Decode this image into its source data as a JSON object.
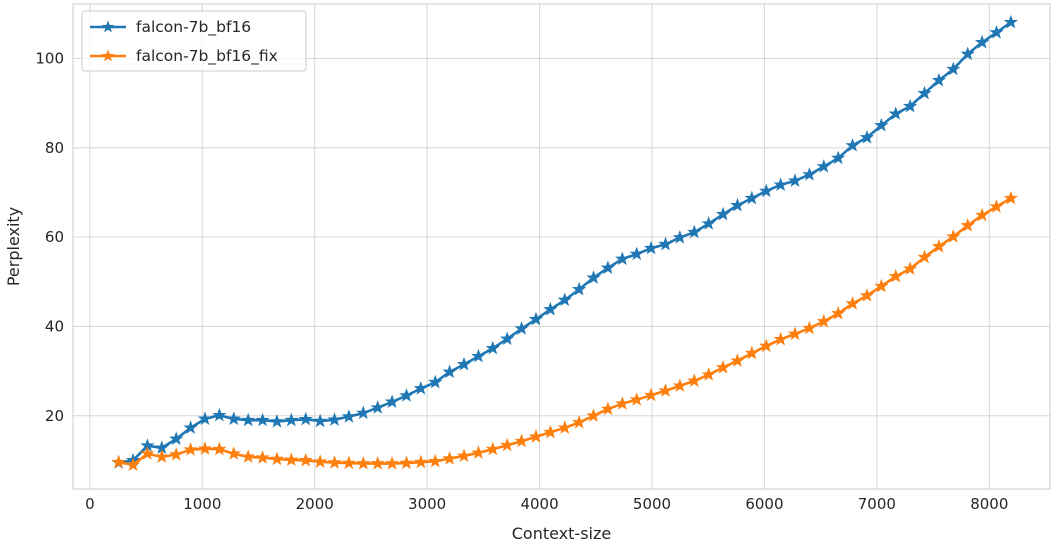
{
  "chart_data": {
    "type": "line",
    "xlabel": "Context-size",
    "ylabel": "Perplexity",
    "xlim": [
      -150,
      8540
    ],
    "ylim": [
      3.6,
      112.2
    ],
    "xticks": [
      0,
      1000,
      2000,
      3000,
      4000,
      5000,
      6000,
      7000,
      8000
    ],
    "yticks": [
      20,
      40,
      60,
      80,
      100
    ],
    "grid": true,
    "legend_position": "top-left",
    "marker": "star",
    "x": [
      256,
      384,
      512,
      640,
      768,
      896,
      1024,
      1152,
      1280,
      1408,
      1536,
      1664,
      1792,
      1920,
      2048,
      2176,
      2304,
      2432,
      2560,
      2688,
      2816,
      2944,
      3072,
      3200,
      3328,
      3456,
      3584,
      3712,
      3840,
      3968,
      4096,
      4224,
      4352,
      4480,
      4608,
      4736,
      4864,
      4992,
      5120,
      5248,
      5376,
      5504,
      5632,
      5760,
      5888,
      6016,
      6144,
      6272,
      6400,
      6528,
      6656,
      6784,
      6912,
      7040,
      7168,
      7296,
      7424,
      7552,
      7680,
      7808,
      7936,
      8064,
      8192
    ],
    "series": [
      {
        "name": "falcon-7b_bf16",
        "color": "#1f77b4",
        "values": [
          9.5,
          10.0,
          13.3,
          12.8,
          14.8,
          17.3,
          19.3,
          20.1,
          19.3,
          19.0,
          19.0,
          18.7,
          19.0,
          19.2,
          18.8,
          19.1,
          19.8,
          20.6,
          21.8,
          23.1,
          24.5,
          26.1,
          27.5,
          29.8,
          31.5,
          33.3,
          35.1,
          37.2,
          39.5,
          41.6,
          43.8,
          45.9,
          48.3,
          50.9,
          53.1,
          55.1,
          56.2,
          57.5,
          58.4,
          59.9,
          61.1,
          63.0,
          65.1,
          67.1,
          68.7,
          70.3,
          71.7,
          72.6,
          74.0,
          75.8,
          77.7,
          80.5,
          82.3,
          85.0,
          87.6,
          89.3,
          92.2,
          95.1,
          97.6,
          101.0,
          103.6,
          105.8,
          108.1
        ]
      },
      {
        "name": "falcon-7b_bf16_fix",
        "color": "#ff7f0e",
        "values": [
          9.6,
          9.0,
          11.5,
          10.8,
          11.3,
          12.4,
          12.6,
          12.5,
          11.5,
          10.8,
          10.6,
          10.3,
          10.1,
          10.0,
          9.7,
          9.5,
          9.4,
          9.3,
          9.3,
          9.3,
          9.4,
          9.6,
          9.8,
          10.4,
          11.0,
          11.7,
          12.5,
          13.4,
          14.3,
          15.3,
          16.3,
          17.3,
          18.5,
          20.0,
          21.5,
          22.7,
          23.6,
          24.6,
          25.6,
          26.7,
          27.8,
          29.2,
          30.8,
          32.3,
          34.0,
          35.6,
          37.1,
          38.3,
          39.6,
          41.1,
          42.9,
          45.1,
          46.9,
          49.0,
          51.2,
          52.9,
          55.5,
          57.9,
          60.1,
          62.6,
          64.9,
          66.8,
          68.7
        ]
      }
    ]
  }
}
